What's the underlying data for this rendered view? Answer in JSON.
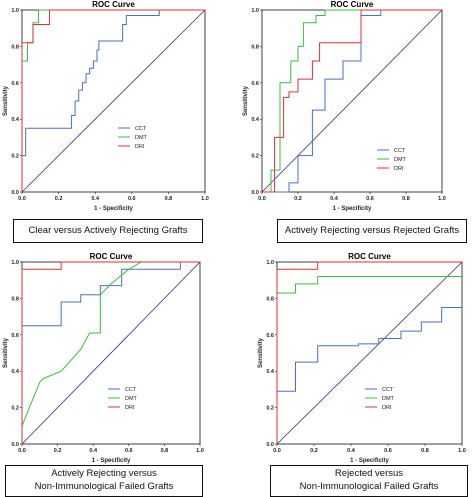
{
  "chart_data": [
    {
      "type": "line",
      "title": "ROC Curve",
      "xlabel": "1 - Specificity",
      "ylabel": "Sensitivity",
      "xlim": [
        0,
        1
      ],
      "ylim": [
        0,
        1
      ],
      "xticks": [
        "0.0",
        "0.2",
        "0.4",
        "0.6",
        "0.8",
        "1.0"
      ],
      "yticks": [
        "0.0",
        "0.2",
        "0.4",
        "0.6",
        "0.8",
        "1.0"
      ],
      "legend_position": "center-right",
      "caption": [
        "Clear versus Actively Rejecting Grafts"
      ],
      "series": [
        {
          "name": "CCT",
          "color": "#4a6fc7",
          "x": [
            0,
            0,
            0.02,
            0.02,
            0.27,
            0.27,
            0.29,
            0.29,
            0.31,
            0.31,
            0.33,
            0.33,
            0.35,
            0.35,
            0.37,
            0.37,
            0.39,
            0.39,
            0.41,
            0.41,
            0.42,
            0.42,
            0.55,
            0.55,
            0.57,
            0.57,
            0.75,
            0.75,
            1
          ],
          "y": [
            0,
            0.2,
            0.2,
            0.35,
            0.35,
            0.42,
            0.42,
            0.5,
            0.5,
            0.56,
            0.56,
            0.6,
            0.6,
            0.65,
            0.65,
            0.68,
            0.68,
            0.72,
            0.72,
            0.78,
            0.78,
            0.83,
            0.83,
            0.92,
            0.92,
            0.97,
            0.97,
            1,
            1
          ]
        },
        {
          "name": "DMT",
          "color": "#3cbf3c",
          "x": [
            0,
            0,
            0.03,
            0.03,
            0.06,
            0.06,
            0.09,
            0.09,
            1
          ],
          "y": [
            0,
            0.72,
            0.72,
            0.82,
            0.82,
            0.93,
            0.93,
            1,
            1
          ]
        },
        {
          "name": "DRI",
          "color": "#e03030",
          "x": [
            0,
            0,
            0.06,
            0.06,
            0.15,
            0.15,
            1
          ],
          "y": [
            0,
            0.82,
            0.82,
            0.92,
            0.92,
            1,
            1
          ]
        }
      ]
    },
    {
      "type": "line",
      "title": "ROC Curve",
      "xlabel": "1 - Specificity",
      "ylabel": "Sensitivity",
      "xlim": [
        0,
        1
      ],
      "ylim": [
        0,
        1
      ],
      "xticks": [
        "0.0",
        "0.2",
        "0.4",
        "0.6",
        "0.8",
        "1.0"
      ],
      "yticks": [
        "0.0",
        "0.2",
        "0.4",
        "0.6",
        "0.8",
        "1.0"
      ],
      "legend_position": "bottom-right",
      "caption": [
        "Actively Rejecting versus Rejected Grafts"
      ],
      "series": [
        {
          "name": "CCT",
          "color": "#4a6fc7",
          "x": [
            0,
            0.15,
            0.15,
            0.2,
            0.2,
            0.28,
            0.28,
            0.35,
            0.35,
            0.45,
            0.45,
            0.55,
            0.55,
            0.66,
            0.66,
            1
          ],
          "y": [
            0,
            0,
            0.05,
            0.05,
            0.2,
            0.2,
            0.45,
            0.45,
            0.62,
            0.62,
            0.72,
            0.72,
            0.97,
            0.97,
            1,
            1
          ]
        },
        {
          "name": "DMT",
          "color": "#3cbf3c",
          "x": [
            0,
            0.05,
            0.05,
            0.1,
            0.1,
            0.16,
            0.16,
            0.2,
            0.2,
            0.23,
            0.23,
            0.3,
            0.3,
            0.35,
            0.35,
            1
          ],
          "y": [
            0,
            0,
            0.12,
            0.12,
            0.6,
            0.6,
            0.72,
            0.72,
            0.8,
            0.8,
            0.93,
            0.93,
            0.97,
            0.97,
            1,
            1
          ]
        },
        {
          "name": "DRI",
          "color": "#e03030",
          "x": [
            0,
            0.07,
            0.07,
            0.12,
            0.12,
            0.15,
            0.15,
            0.2,
            0.2,
            0.28,
            0.28,
            0.32,
            0.32,
            0.55,
            0.55,
            1
          ],
          "y": [
            0,
            0,
            0.3,
            0.3,
            0.52,
            0.52,
            0.55,
            0.55,
            0.62,
            0.62,
            0.72,
            0.72,
            0.82,
            0.82,
            1,
            1
          ]
        }
      ]
    },
    {
      "type": "line",
      "title": "ROC Curve",
      "xlabel": "1 - Specificity",
      "ylabel": "Sensitivity",
      "xlim": [
        0,
        1
      ],
      "ylim": [
        0,
        1
      ],
      "xticks": [
        "0.0",
        "0.2",
        "0.4",
        "0.6",
        "0.8",
        "1.0"
      ],
      "yticks": [
        "0.0",
        "0.2",
        "0.4",
        "0.6",
        "0.8",
        "1.0"
      ],
      "legend_position": "bottom-center",
      "caption": [
        "Actively Rejecting versus",
        "Non-Immunological Failed Grafts"
      ],
      "series": [
        {
          "name": "CCT",
          "color": "#4a6fc7",
          "x": [
            0,
            0,
            0.22,
            0.22,
            0.33,
            0.33,
            0.44,
            0.44,
            0.56,
            0.56,
            0.67,
            0.67,
            0.89,
            0.89,
            1
          ],
          "y": [
            0,
            0.65,
            0.65,
            0.78,
            0.78,
            0.82,
            0.82,
            0.87,
            0.87,
            0.96,
            0.96,
            0.96,
            0.96,
            1,
            1
          ]
        },
        {
          "name": "DMT",
          "color": "#3cbf3c",
          "x": [
            0,
            0,
            0.05,
            0.1,
            0.12,
            0.22,
            0.33,
            0.38,
            0.44,
            0.44,
            0.5,
            0.6,
            0.67,
            1
          ],
          "y": [
            0,
            0.1,
            0.22,
            0.34,
            0.36,
            0.4,
            0.52,
            0.61,
            0.61,
            0.82,
            0.88,
            0.96,
            1,
            1
          ]
        },
        {
          "name": "DRI",
          "color": "#e03030",
          "x": [
            0,
            0,
            0.22,
            0.22,
            1
          ],
          "y": [
            0,
            0.96,
            0.96,
            1,
            1
          ]
        }
      ]
    },
    {
      "type": "line",
      "title": "ROC Curve",
      "xlabel": "1 - Specificity",
      "ylabel": "Sensitivity",
      "xlim": [
        0,
        1
      ],
      "ylim": [
        0,
        1
      ],
      "xticks": [
        "0.0",
        "0.2",
        "0.4",
        "0.6",
        "0.8",
        "1.0"
      ],
      "yticks": [
        "0.0",
        "0.2",
        "0.4",
        "0.6",
        "0.8",
        "1.0"
      ],
      "legend_position": "bottom-center",
      "caption": [
        "Rejected versus",
        "Non-Immunological Failed Grafts"
      ],
      "series": [
        {
          "name": "CCT",
          "color": "#4a6fc7",
          "x": [
            0,
            0,
            0.1,
            0.1,
            0.22,
            0.22,
            0.44,
            0.44,
            0.55,
            0.55,
            0.67,
            0.67,
            0.78,
            0.78,
            0.89,
            0.89,
            1
          ],
          "y": [
            0,
            0.29,
            0.29,
            0.45,
            0.45,
            0.54,
            0.54,
            0.55,
            0.55,
            0.58,
            0.58,
            0.62,
            0.62,
            0.67,
            0.67,
            0.75,
            0.75
          ]
        },
        {
          "name": "DMT",
          "color": "#3cbf3c",
          "x": [
            0,
            0,
            0.1,
            0.1,
            0.22,
            0.22,
            1
          ],
          "y": [
            0,
            0.83,
            0.83,
            0.88,
            0.88,
            0.92,
            0.92
          ]
        },
        {
          "name": "DRI",
          "color": "#e03030",
          "x": [
            0,
            0,
            0.22,
            0.22,
            1
          ],
          "y": [
            0,
            0.96,
            0.96,
            1,
            1
          ]
        }
      ]
    }
  ]
}
